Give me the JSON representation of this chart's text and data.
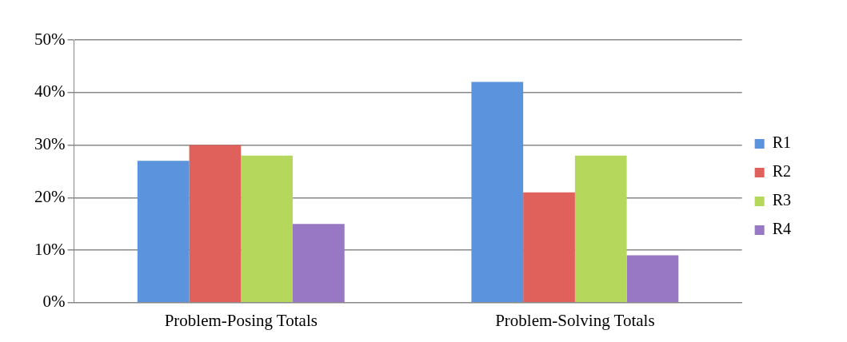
{
  "chart_data": {
    "type": "bar",
    "categories": [
      "Problem-Posing Totals",
      "Problem-Solving Totals"
    ],
    "series": [
      {
        "name": "R1",
        "color": "#5b93dc",
        "values": [
          27,
          42
        ]
      },
      {
        "name": "R2",
        "color": "#e0605c",
        "values": [
          30,
          21
        ]
      },
      {
        "name": "R3",
        "color": "#b5d85c",
        "values": [
          28,
          28
        ]
      },
      {
        "name": "R4",
        "color": "#9878c4",
        "values": [
          15,
          9
        ]
      }
    ],
    "ylim": [
      0,
      50
    ],
    "yticks": [
      {
        "value": 0,
        "label": "0%"
      },
      {
        "value": 10,
        "label": "10%"
      },
      {
        "value": 20,
        "label": "20%"
      },
      {
        "value": 30,
        "label": "30%"
      },
      {
        "value": 40,
        "label": "40%"
      },
      {
        "value": 50,
        "label": "50%"
      }
    ],
    "grid": "y",
    "legend": "right"
  }
}
